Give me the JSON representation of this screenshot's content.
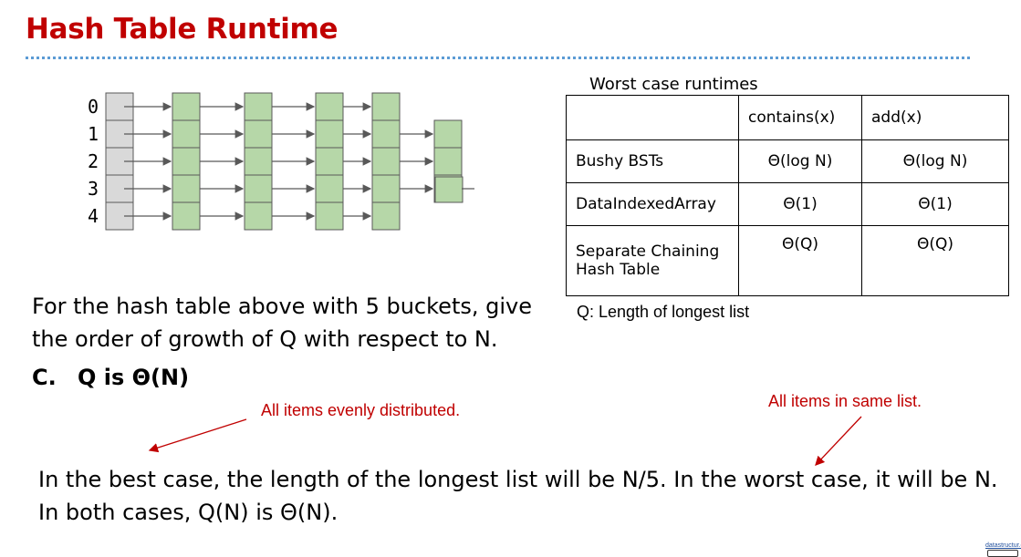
{
  "title": "Hash Table Runtime",
  "diagram": {
    "bucket_indices": [
      "0",
      "1",
      "2",
      "3",
      "4"
    ],
    "colors": {
      "bucket_fill": "#d9d9d9",
      "node_fill": "#b6d7a8",
      "stroke": "#595959"
    }
  },
  "table": {
    "caption": "Worst case runtimes",
    "header": [
      "",
      "contains(x)",
      "add(x)"
    ],
    "rows": [
      {
        "name": "Bushy BSTs",
        "contains": "Θ(log N)",
        "add": "Θ(log N)"
      },
      {
        "name": "DataIndexedArray",
        "contains": "Θ(1)",
        "add": "Θ(1)"
      },
      {
        "name": "Separate Chaining Hash Table",
        "contains": "Θ(Q)",
        "add": "Θ(Q)"
      }
    ],
    "note": "Q: Length of longest list"
  },
  "question": {
    "line1": "For the hash table above with 5 buckets, give",
    "line2": "the order of growth of Q with respect to N."
  },
  "answer": {
    "option": "C.",
    "text": "Q is Θ(N)"
  },
  "annotations": {
    "left": "All items evenly distributed.",
    "right": "All items in same list."
  },
  "explanation": "In the best case, the length of the longest list will be N/5. In the worst case, it will be N. In both cases, Q(N) is Θ(N).",
  "logo": "datastructur.es",
  "accent_color": "#c00000"
}
